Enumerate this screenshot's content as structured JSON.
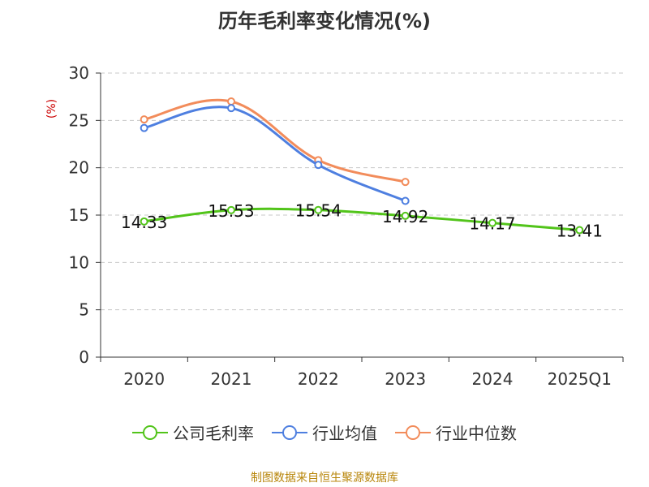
{
  "chart_data": {
    "type": "line",
    "title": "历年毛利率变化情况(%)",
    "unit_label": "(%)",
    "categories": [
      "2020",
      "2021",
      "2022",
      "2023",
      "2024",
      "2025Q1"
    ],
    "ylim": [
      0,
      30
    ],
    "yticks": [
      0,
      5,
      10,
      15,
      20,
      25,
      30
    ],
    "grid": true,
    "legend_position": "bottom",
    "series": [
      {
        "name": "公司毛利率",
        "color": "#52c41a",
        "values": [
          14.33,
          15.53,
          15.54,
          14.92,
          14.17,
          13.41
        ],
        "data_labels": [
          "14.33",
          "15.53",
          "15.54",
          "14.92",
          "14.17",
          "13.41"
        ]
      },
      {
        "name": "行业均值",
        "color": "#4e7fe0",
        "values": [
          24.2,
          26.3,
          20.3,
          16.5,
          null,
          null
        ]
      },
      {
        "name": "行业中位数",
        "color": "#f28c5b",
        "values": [
          25.1,
          27.0,
          20.8,
          18.5,
          null,
          null
        ]
      }
    ]
  },
  "footer": {
    "source": "制图数据来自恒生聚源数据库"
  }
}
